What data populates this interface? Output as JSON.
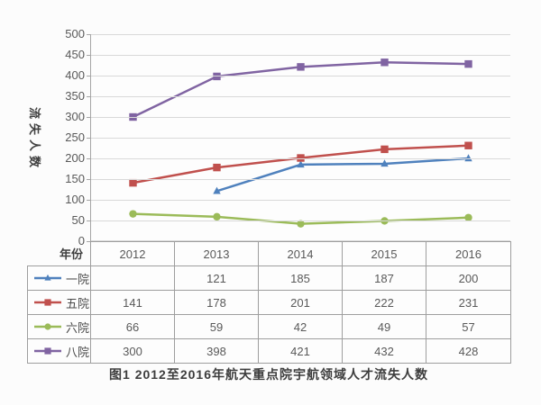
{
  "chart_data": {
    "type": "line",
    "caption": "图1 2012至2016年航天重点院宇航领域人才流失人数",
    "ylabel": "流失人数",
    "xlabel_header": "年份",
    "categories": [
      "2012",
      "2013",
      "2014",
      "2015",
      "2016"
    ],
    "ylim": [
      0,
      500
    ],
    "ytick_step": 50,
    "grid": true,
    "legend_position": "table-left",
    "series": [
      {
        "name": "一院",
        "color": "#4F81BD",
        "marker": "triangle",
        "values": [
          null,
          121,
          185,
          187,
          200
        ]
      },
      {
        "name": "五院",
        "color": "#C0504D",
        "marker": "square",
        "values": [
          141,
          178,
          201,
          222,
          231
        ]
      },
      {
        "name": "六院",
        "color": "#9BBB59",
        "marker": "circle",
        "values": [
          66,
          59,
          42,
          49,
          57
        ]
      },
      {
        "name": "八院",
        "color": "#8064A2",
        "marker": "square",
        "values": [
          300,
          398,
          421,
          432,
          428
        ]
      }
    ],
    "colors": {
      "grid": "#d9d9d9",
      "axis": "#a6a6a6",
      "table_border": "#9e9e9e",
      "text": "#595959"
    }
  }
}
